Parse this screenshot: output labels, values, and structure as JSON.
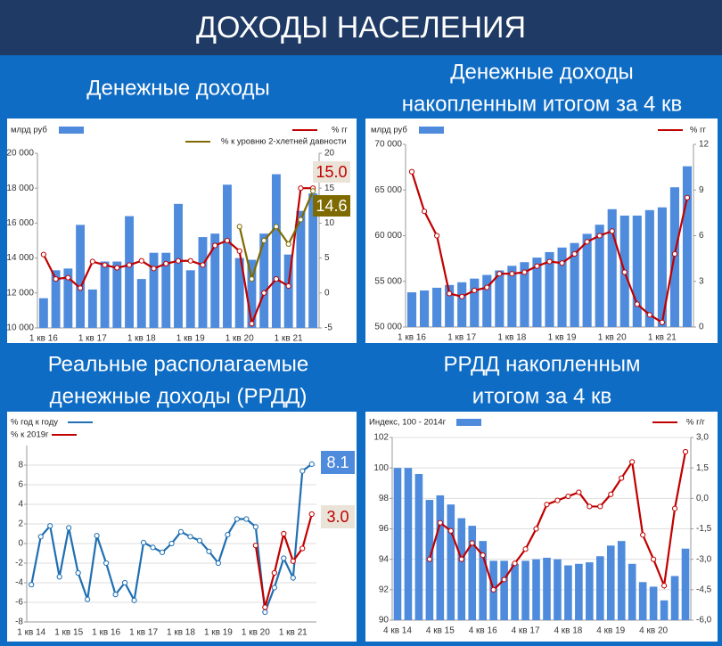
{
  "header": {
    "title": "ДОХОДЫ НАСЕЛЕНИЯ"
  },
  "chart_data": [
    {
      "type": "bar",
      "title": [
        "Денежные доходы"
      ],
      "categories": [
        "1 кв 16",
        null,
        null,
        null,
        "1 кв 17",
        null,
        null,
        null,
        "1 кв 18",
        null,
        null,
        null,
        "1 кв 19",
        null,
        null,
        null,
        "1 кв 20",
        null,
        null,
        null,
        "1 кв 21",
        null,
        null
      ],
      "series": [
        {
          "name": "млрд руб",
          "type": "bar",
          "color": "#4f8bdc",
          "values": [
            11700,
            13300,
            13400,
            15900,
            12200,
            13800,
            13800,
            16400,
            12800,
            14300,
            14300,
            17100,
            13300,
            15200,
            15400,
            18200,
            14000,
            13900,
            15400,
            18800,
            14200,
            16700,
            17700
          ]
        },
        {
          "name": "% гг",
          "type": "line",
          "axis": "y2",
          "color": "#c00000",
          "values": [
            5.5,
            2.0,
            2.2,
            0.7,
            4.5,
            4.0,
            3.6,
            4.0,
            4.6,
            3.5,
            4.2,
            4.6,
            4.6,
            4.0,
            6.8,
            7.5,
            6.0,
            -4.4,
            0.0,
            2.0,
            1.0,
            15.0,
            15.0
          ],
          "value_labels": [
            null,
            null,
            null,
            null,
            null,
            null,
            null,
            null,
            null,
            null,
            null,
            null,
            null,
            null,
            null,
            null,
            null,
            null,
            null,
            null,
            null,
            null,
            "15.0"
          ]
        },
        {
          "name": "%  к уровню 2-хлетней давности",
          "type": "line",
          "axis": "y2",
          "color": "#7f6a00",
          "values": [
            null,
            null,
            null,
            null,
            null,
            null,
            null,
            null,
            null,
            null,
            null,
            null,
            null,
            null,
            null,
            null,
            9.5,
            2.0,
            7.5,
            9.5,
            7.0,
            10.5,
            14.6
          ],
          "value_labels": [
            null,
            null,
            null,
            null,
            null,
            null,
            null,
            null,
            null,
            null,
            null,
            null,
            null,
            null,
            null,
            null,
            null,
            null,
            null,
            null,
            null,
            null,
            "14.6"
          ]
        }
      ],
      "ylim": [
        10000,
        20000
      ],
      "yticks": [
        {
          "value": 10000,
          "label": "10 000"
        },
        {
          "value": 12000,
          "label": "12 000"
        },
        {
          "value": 14000,
          "label": "14 000"
        },
        {
          "value": 16000,
          "label": "16 000"
        },
        {
          "value": 18000,
          "label": "18 000"
        },
        {
          "value": 20000,
          "label": "20 000"
        }
      ],
      "y2lim": [
        -5,
        20
      ],
      "y2ticks": [
        -5,
        0,
        5,
        10,
        15,
        20
      ],
      "grid": false
    },
    {
      "type": "bar",
      "title": [
        "Денежные доходы",
        "накопленным итогом за 4 кв"
      ],
      "categories": [
        "1 кв 16",
        null,
        null,
        null,
        "1 кв 17",
        null,
        null,
        null,
        "1 кв 18",
        null,
        null,
        null,
        "1 кв 19",
        null,
        null,
        null,
        "1 кв 20",
        null,
        null,
        null,
        "1 кв 21",
        null,
        null
      ],
      "series": [
        {
          "name": "млрд руб",
          "type": "bar",
          "color": "#4f8bdc",
          "values": [
            53800,
            54000,
            54300,
            54600,
            54900,
            55300,
            55700,
            56200,
            56700,
            57100,
            57600,
            58200,
            58700,
            59200,
            60200,
            61200,
            62900,
            62200,
            62200,
            62800,
            63100,
            65300,
            67600
          ]
        },
        {
          "name": "% гг",
          "type": "line",
          "axis": "y2",
          "color": "#c00000",
          "values": [
            10.2,
            7.6,
            6.0,
            2.2,
            2.0,
            2.4,
            2.6,
            3.5,
            3.5,
            3.6,
            4.0,
            4.3,
            4.2,
            4.8,
            5.6,
            6.0,
            6.3,
            3.6,
            1.5,
            0.8,
            0.3,
            4.8,
            8.5
          ]
        }
      ],
      "ylim": [
        50000,
        70000
      ],
      "yticks": [
        {
          "value": 50000,
          "label": "50 000"
        },
        {
          "value": 55000,
          "label": "55 000"
        },
        {
          "value": 60000,
          "label": "60 000"
        },
        {
          "value": 65000,
          "label": "65 000"
        },
        {
          "value": 70000,
          "label": "70 000"
        }
      ],
      "y2lim": [
        0,
        12
      ],
      "y2ticks": [
        0,
        3,
        6,
        9,
        12
      ],
      "grid": false
    },
    {
      "type": "line",
      "title": [
        "Реальные располагаемые",
        "денежные доходы (РРДД)"
      ],
      "categories": [
        "1 кв 14",
        null,
        null,
        null,
        "1 кв 15",
        null,
        null,
        null,
        "1 кв 16",
        null,
        null,
        null,
        "1 кв 17",
        null,
        null,
        null,
        "1 кв 18",
        null,
        null,
        null,
        "1 кв 19",
        null,
        null,
        null,
        "1 кв 20",
        null,
        null,
        null,
        "1 кв 21",
        null,
        null
      ],
      "series": [
        {
          "name": "% год к году",
          "type": "line",
          "color": "#1f6fb2",
          "values": [
            -4.2,
            0.7,
            1.8,
            -3.4,
            1.6,
            -3.0,
            -5.7,
            0.8,
            -2.0,
            -5.2,
            -4.0,
            -5.8,
            0.1,
            -0.4,
            -0.9,
            0.0,
            1.2,
            0.7,
            0.3,
            -0.8,
            -2.0,
            0.9,
            2.5,
            2.5,
            1.7,
            -7.0,
            -4.5,
            -1.5,
            -3.5,
            7.4,
            8.1
          ],
          "value_labels": [
            null,
            null,
            null,
            null,
            null,
            null,
            null,
            null,
            null,
            null,
            null,
            null,
            null,
            null,
            null,
            null,
            null,
            null,
            null,
            null,
            null,
            null,
            null,
            null,
            null,
            null,
            null,
            null,
            null,
            null,
            "8.1"
          ]
        },
        {
          "name": "% к 2019г",
          "type": "line",
          "color": "#c00000",
          "values": [
            null,
            null,
            null,
            null,
            null,
            null,
            null,
            null,
            null,
            null,
            null,
            null,
            null,
            null,
            null,
            null,
            null,
            null,
            null,
            null,
            null,
            null,
            null,
            null,
            -0.2,
            -6.5,
            -3.0,
            1.0,
            -1.8,
            -0.5,
            3.0
          ],
          "value_labels": [
            null,
            null,
            null,
            null,
            null,
            null,
            null,
            null,
            null,
            null,
            null,
            null,
            null,
            null,
            null,
            null,
            null,
            null,
            null,
            null,
            null,
            null,
            null,
            null,
            null,
            null,
            null,
            null,
            null,
            null,
            "3.0"
          ]
        }
      ],
      "ylim": [
        -8,
        10
      ],
      "yticks": [
        -8,
        -6,
        -4,
        -2,
        0,
        2,
        4,
        6,
        8
      ],
      "grid": true
    },
    {
      "type": "bar",
      "title": [
        "РРДД накопленным",
        "итогом за 4 кв"
      ],
      "categories": [
        "4 кв 14",
        null,
        null,
        null,
        "4 кв 15",
        null,
        null,
        null,
        "4 кв 16",
        null,
        null,
        null,
        "4 кв 17",
        null,
        null,
        null,
        "4 кв 18",
        null,
        null,
        null,
        "4 кв 19",
        null,
        null,
        null,
        "4 кв 20",
        null,
        null,
        null
      ],
      "series": [
        {
          "name": "Индекс, 100 - 2014г",
          "type": "bar",
          "color": "#4f8bdc",
          "values": [
            100.0,
            100.0,
            99.6,
            97.9,
            98.2,
            97.6,
            96.7,
            96.2,
            95.2,
            93.9,
            93.9,
            93.7,
            93.9,
            94.0,
            94.1,
            94.0,
            93.6,
            93.7,
            93.8,
            94.2,
            94.9,
            95.2,
            93.7,
            92.5,
            92.2,
            91.3,
            92.9,
            94.7
          ]
        },
        {
          "name": "% г/г",
          "type": "line",
          "axis": "y2",
          "color": "#c00000",
          "values": [
            null,
            null,
            null,
            -3.0,
            -1.2,
            -1.6,
            -3.0,
            -2.2,
            -2.8,
            -4.5,
            -4.0,
            -3.2,
            -2.5,
            -1.5,
            -0.3,
            -0.1,
            0.1,
            0.3,
            -0.4,
            -0.4,
            0.2,
            1.0,
            1.8,
            -1.8,
            -3.0,
            -4.3,
            -0.5,
            2.3
          ]
        }
      ],
      "ylim": [
        90,
        102
      ],
      "yticks": [
        90,
        92,
        94,
        96,
        98,
        100,
        102
      ],
      "y2lim": [
        -6,
        3
      ],
      "y2ticks": [
        {
          "value": -6,
          "label": "-6,0"
        },
        {
          "value": -4.5,
          "label": "-4,5"
        },
        {
          "value": -3,
          "label": "-3,0"
        },
        {
          "value": -1.5,
          "label": "-1,5"
        },
        {
          "value": 0,
          "label": "0,0"
        },
        {
          "value": 1.5,
          "label": "1,5"
        },
        {
          "value": 3,
          "label": "3,0"
        }
      ],
      "grid": true
    }
  ]
}
